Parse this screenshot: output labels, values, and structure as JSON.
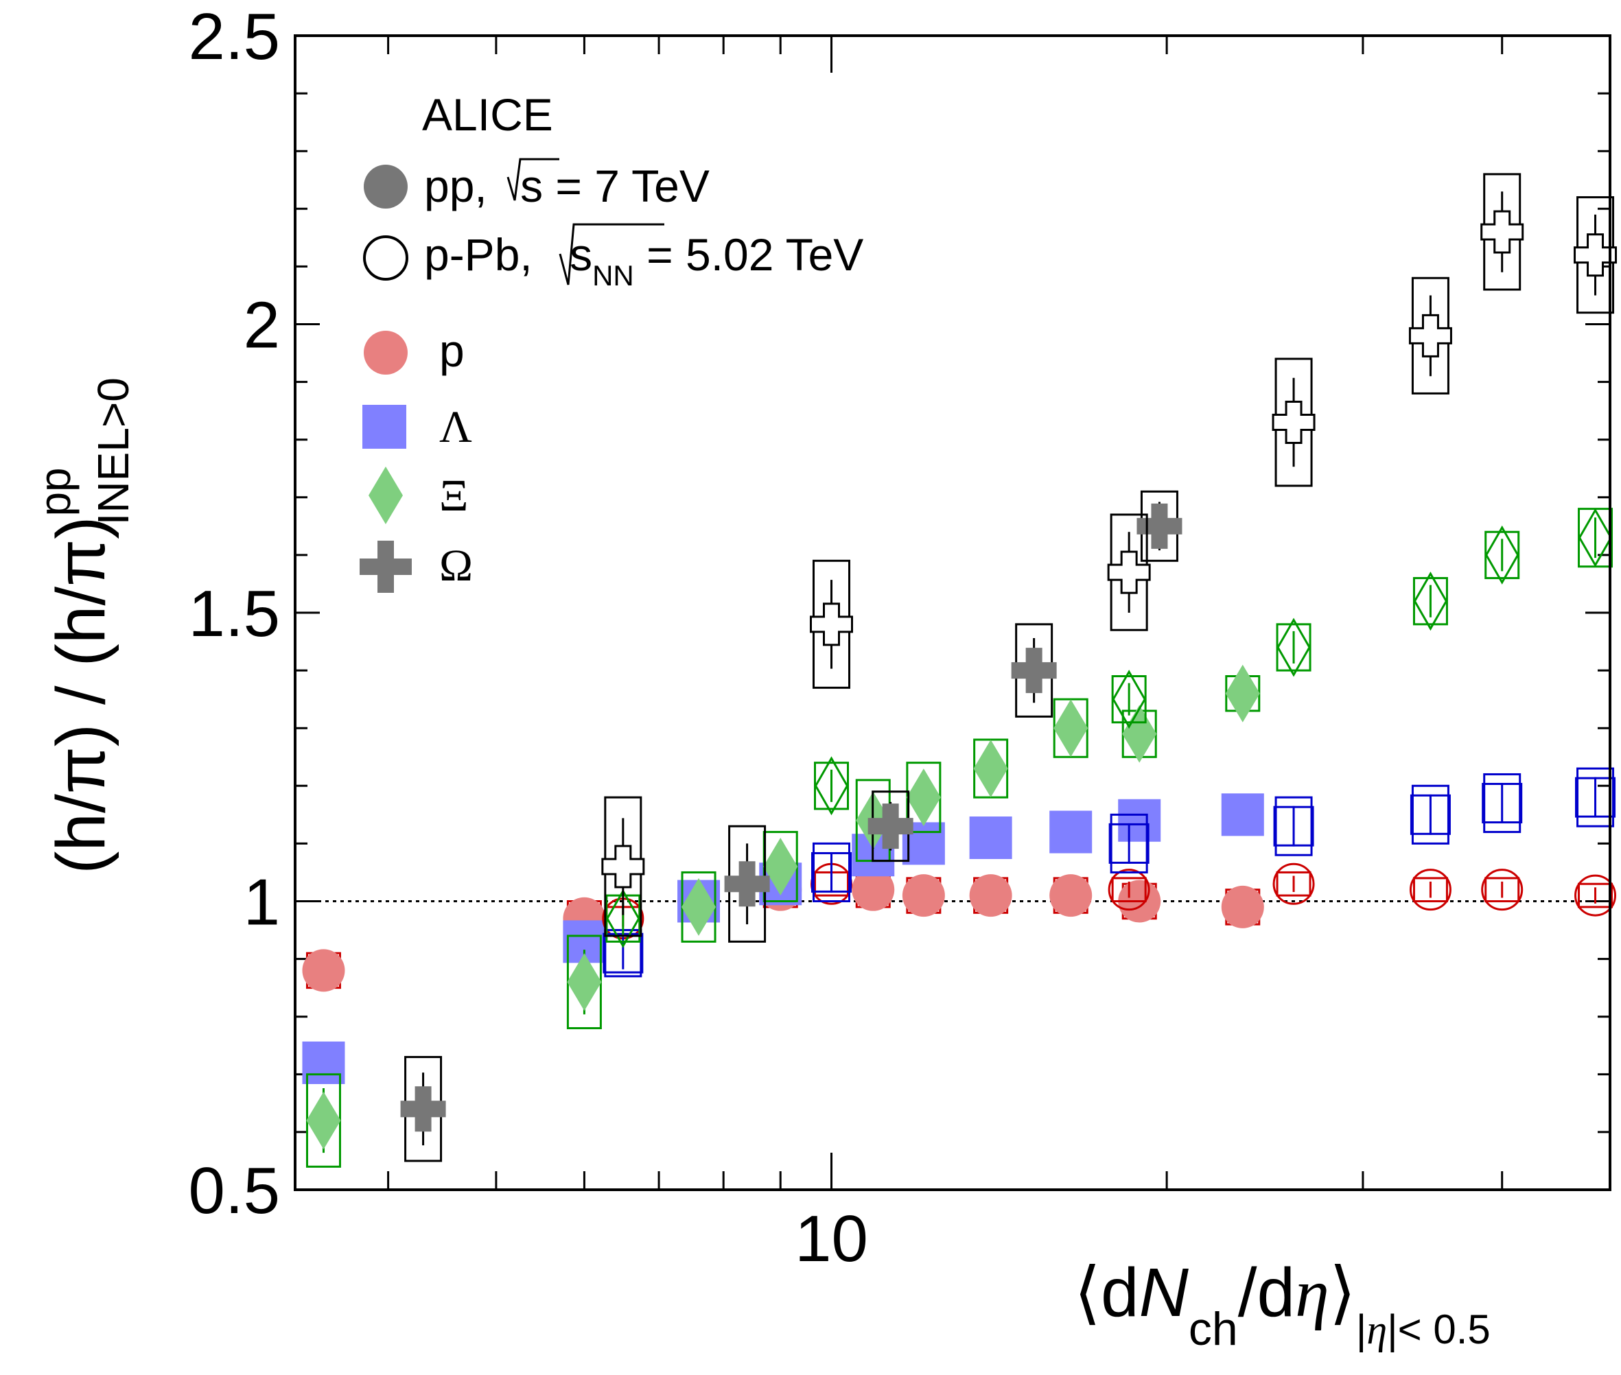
{
  "chart_data": {
    "type": "scatter",
    "xscale": "log",
    "xlim": [
      3.3,
      50
    ],
    "ylim": [
      0.5,
      2.5
    ],
    "y_ticks": [
      "0.5",
      "1",
      "1.5",
      "2",
      "2.5"
    ],
    "x_ticks": [
      "10"
    ],
    "reference_line": 1.0,
    "grid": false,
    "legend_position": "top-left",
    "experiment_label": "ALICE",
    "ylabel": {
      "main": "(h/π) / (h/π)",
      "sub": "INEL>0",
      "sup": "pp"
    },
    "xlabel": {
      "main_pre": "⟨d",
      "N": "N",
      "ch": "ch",
      "mid": "/d",
      "eta": "η",
      "close": "⟩",
      "range_pre": "|",
      "range_eta": "η",
      "range_post": "|< 0.5"
    },
    "systems": [
      {
        "label_pre": "pp, ",
        "label_s": "s",
        "label_post": " = 7 TeV",
        "marker": "filled"
      },
      {
        "label_pre": "p-Pb, ",
        "label_s": "s",
        "label_sub": "NN",
        "label_post": " = 5.02 TeV",
        "marker": "open"
      }
    ],
    "species": [
      {
        "symbol": "p",
        "marker": "circle",
        "fill_color": "#e88080",
        "open_color": "#cc0000"
      },
      {
        "symbol": "Λ",
        "marker": "square",
        "fill_color": "#8080ff",
        "open_color": "#0000cc"
      },
      {
        "symbol": "Ξ",
        "marker": "diamond",
        "fill_color": "#7fcf7f",
        "open_color": "#009900"
      },
      {
        "symbol": "Ω",
        "marker": "cross",
        "fill_color": "#777777",
        "open_color": "#000000"
      }
    ],
    "series": [
      {
        "species": "p",
        "system": "pp 7 TeV",
        "x": [
          3.5,
          6.0,
          7.6,
          9.0,
          10.9,
          12.1,
          13.9,
          16.4,
          18.9,
          23.4
        ],
        "y": [
          0.88,
          0.97,
          1.0,
          1.02,
          1.02,
          1.01,
          1.01,
          1.01,
          1.0,
          0.99
        ],
        "syst": [
          0.03,
          0.03,
          0.03,
          0.03,
          0.03,
          0.03,
          0.03,
          0.03,
          0.03,
          0.03
        ]
      },
      {
        "species": "Λ",
        "system": "pp 7 TeV",
        "x": [
          3.5,
          6.0,
          7.6,
          9.0,
          10.9,
          12.1,
          13.9,
          16.4,
          18.9,
          23.4
        ],
        "y": [
          0.72,
          0.93,
          1.0,
          1.03,
          1.08,
          1.1,
          1.11,
          1.12,
          1.14,
          1.15
        ],
        "syst": [
          0.03,
          0.03,
          0.03,
          0.03,
          0.03,
          0.03,
          0.03,
          0.03,
          0.03,
          0.03
        ]
      },
      {
        "species": "Ξ",
        "system": "pp 7 TeV",
        "x": [
          3.5,
          6.0,
          7.6,
          9.0,
          10.9,
          12.1,
          13.9,
          16.4,
          18.9,
          23.4
        ],
        "y": [
          0.62,
          0.86,
          0.99,
          1.06,
          1.14,
          1.18,
          1.23,
          1.3,
          1.29,
          1.36
        ],
        "syst": [
          0.08,
          0.08,
          0.06,
          0.06,
          0.07,
          0.06,
          0.05,
          0.05,
          0.04,
          0.03
        ]
      },
      {
        "species": "Ω",
        "system": "pp 7 TeV",
        "x": [
          4.3,
          8.4,
          11.3,
          15.2,
          19.7
        ],
        "y": [
          0.64,
          1.03,
          1.13,
          1.4,
          1.65
        ],
        "syst": [
          0.09,
          0.1,
          0.06,
          0.08,
          0.06
        ]
      },
      {
        "species": "p",
        "system": "p-Pb 5.02 TeV",
        "x": [
          6.5,
          10.0,
          18.5,
          26.0,
          34.5,
          40.0,
          48.5
        ],
        "y": [
          0.97,
          1.03,
          1.02,
          1.03,
          1.02,
          1.02,
          1.01
        ],
        "syst": [
          0.02,
          0.02,
          0.02,
          0.02,
          0.02,
          0.02,
          0.02
        ]
      },
      {
        "species": "Λ",
        "system": "p-Pb 5.02 TeV",
        "x": [
          6.5,
          10.0,
          18.5,
          26.0,
          34.5,
          40.0,
          48.5
        ],
        "y": [
          0.91,
          1.05,
          1.1,
          1.13,
          1.15,
          1.17,
          1.18
        ],
        "syst": [
          0.04,
          0.05,
          0.05,
          0.05,
          0.05,
          0.05,
          0.05
        ]
      },
      {
        "species": "Ξ",
        "system": "p-Pb 5.02 TeV",
        "x": [
          6.5,
          10.0,
          18.5,
          26.0,
          34.5,
          40.0,
          48.5
        ],
        "y": [
          0.97,
          1.2,
          1.35,
          1.44,
          1.52,
          1.6,
          1.63
        ],
        "syst": [
          0.04,
          0.04,
          0.04,
          0.04,
          0.04,
          0.04,
          0.05
        ]
      },
      {
        "species": "Ω",
        "system": "p-Pb 5.02 TeV",
        "x": [
          6.5,
          10.0,
          18.5,
          26.0,
          34.5,
          40.0,
          48.5
        ],
        "y": [
          1.06,
          1.48,
          1.57,
          1.83,
          1.98,
          2.16,
          2.12
        ],
        "syst": [
          0.12,
          0.11,
          0.1,
          0.11,
          0.1,
          0.1,
          0.1
        ]
      }
    ]
  }
}
